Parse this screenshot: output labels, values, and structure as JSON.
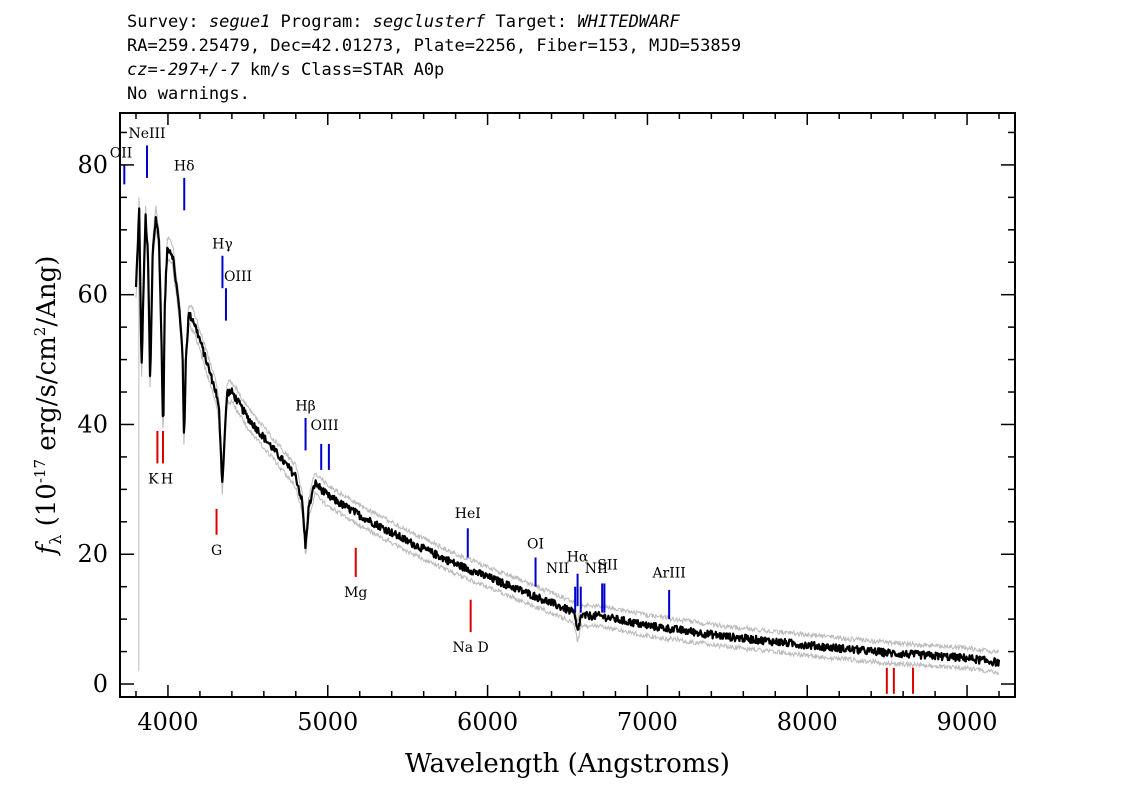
{
  "header": {
    "line1": {
      "survey_label": "Survey: ",
      "survey": "segue1",
      "program_label": " Program: ",
      "program": "segclusterf",
      "target_label": " Target: ",
      "target": "WHITEDWARF"
    },
    "line2": "RA=259.25479, Dec=42.01273, Plate=2256, Fiber=153, MJD=53859",
    "line3": {
      "cz": "cz=-297+/-7",
      "rest": " km/s Class=STAR A0p"
    },
    "line4": "No warnings."
  },
  "chart_data": {
    "type": "line",
    "xlabel": "Wavelength (Angstroms)",
    "ylabel": "f_λ (10^-17 erg/s/cm^2/Ang)",
    "xlim": [
      3700,
      9300
    ],
    "ylim": [
      -2,
      88
    ],
    "x_ticks": [
      4000,
      5000,
      6000,
      7000,
      8000,
      9000
    ],
    "y_ticks": [
      0,
      20,
      40,
      60,
      80
    ],
    "grid": false,
    "series": [
      {
        "style": "spectrum",
        "color": "#000000",
        "noise_color": "#bbbbbb",
        "points": [
          [
            3800,
            61
          ],
          [
            3820,
            73
          ],
          [
            3835,
            48
          ],
          [
            3848,
            62
          ],
          [
            3860,
            72
          ],
          [
            3875,
            66
          ],
          [
            3889,
            46
          ],
          [
            3905,
            67
          ],
          [
            3925,
            72
          ],
          [
            3945,
            68
          ],
          [
            3960,
            52
          ],
          [
            3970,
            38
          ],
          [
            3980,
            58
          ],
          [
            3995,
            67
          ],
          [
            4010,
            67
          ],
          [
            4030,
            66
          ],
          [
            4050,
            62
          ],
          [
            4070,
            58
          ],
          [
            4090,
            52
          ],
          [
            4101,
            37
          ],
          [
            4112,
            50
          ],
          [
            4130,
            57
          ],
          [
            4160,
            56
          ],
          [
            4200,
            53
          ],
          [
            4250,
            49
          ],
          [
            4300,
            45
          ],
          [
            4320,
            42
          ],
          [
            4340,
            31
          ],
          [
            4355,
            38
          ],
          [
            4370,
            45
          ],
          [
            4400,
            45
          ],
          [
            4450,
            43
          ],
          [
            4500,
            41
          ],
          [
            4600,
            38
          ],
          [
            4700,
            35
          ],
          [
            4800,
            32
          ],
          [
            4840,
            28
          ],
          [
            4861,
            21
          ],
          [
            4880,
            27
          ],
          [
            4920,
            31
          ],
          [
            5000,
            29
          ],
          [
            5200,
            26
          ],
          [
            5500,
            22
          ],
          [
            5800,
            18.5
          ],
          [
            6000,
            16.5
          ],
          [
            6200,
            14.5
          ],
          [
            6400,
            12.5
          ],
          [
            6540,
            11
          ],
          [
            6563,
            8
          ],
          [
            6585,
            10.5
          ],
          [
            6700,
            10.5
          ],
          [
            7000,
            9
          ],
          [
            7500,
            7.3
          ],
          [
            8000,
            6
          ],
          [
            8500,
            4.8
          ],
          [
            9000,
            4
          ],
          [
            9200,
            3.3
          ]
        ]
      }
    ],
    "emission_lines": [
      {
        "label": "OII",
        "wave": 3727,
        "color": "#0000cc"
      },
      {
        "label": "NeIII",
        "wave": 3869,
        "color": "#0000cc"
      },
      {
        "label": "Hδ",
        "wave": 4102,
        "color": "#0000cc"
      },
      {
        "label": "Hγ",
        "wave": 4341,
        "color": "#0000cc"
      },
      {
        "label": "OIII",
        "wave": 4363,
        "color": "#0000cc"
      },
      {
        "label": "Hβ",
        "wave": 4861,
        "color": "#0000cc"
      },
      {
        "label": "OIII",
        "wave": 4959,
        "color": "#0000cc"
      },
      {
        "label": "",
        "wave": 5007,
        "color": "#0000cc"
      },
      {
        "label": "HeI",
        "wave": 5876,
        "color": "#0000cc"
      },
      {
        "label": "OI",
        "wave": 6300,
        "color": "#0000cc"
      },
      {
        "label": "NII",
        "wave": 6548,
        "color": "#0000cc"
      },
      {
        "label": "Hα",
        "wave": 6563,
        "color": "#0000cc"
      },
      {
        "label": "NII",
        "wave": 6583,
        "color": "#0000cc"
      },
      {
        "label": "SII",
        "wave": 6717,
        "color": "#0000cc"
      },
      {
        "label": "",
        "wave": 6731,
        "color": "#0000cc"
      },
      {
        "label": "ArIII",
        "wave": 7136,
        "color": "#0000cc"
      }
    ],
    "absorption_lines": [
      {
        "label": "K",
        "wave": 3934,
        "color": "#dd0000"
      },
      {
        "label": "H",
        "wave": 3969,
        "color": "#dd0000"
      },
      {
        "label": "G",
        "wave": 4304,
        "color": "#dd0000"
      },
      {
        "label": "Mg",
        "wave": 5175,
        "color": "#dd0000"
      },
      {
        "label": "Na D",
        "wave": 5894,
        "color": "#dd0000"
      },
      {
        "label": "",
        "wave": 8498,
        "color": "#dd0000"
      },
      {
        "label": "",
        "wave": 8542,
        "color": "#dd0000"
      },
      {
        "label": "",
        "wave": 8662,
        "color": "#dd0000"
      }
    ]
  }
}
